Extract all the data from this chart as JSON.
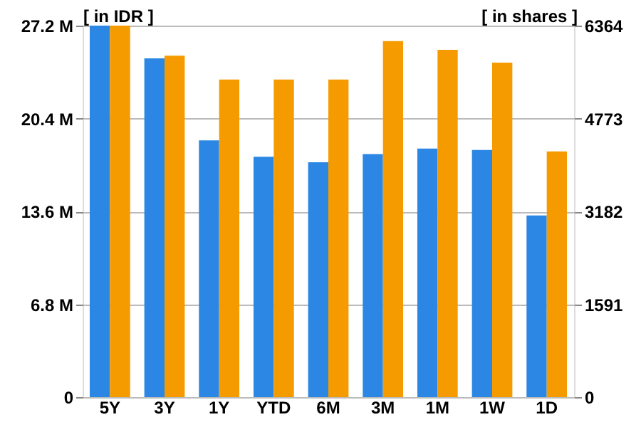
{
  "chart_data": {
    "type": "bar",
    "ylabel": "[ in IDR ]",
    "y2label": "[ in shares ]",
    "categories": [
      "5Y",
      "3Y",
      "1Y",
      "YTD",
      "6M",
      "3M",
      "1M",
      "1W",
      "1D"
    ],
    "series": [
      {
        "color": "#2b87e3",
        "values": [
          27.2,
          24.8,
          18.8,
          17.6,
          17.2,
          17.8,
          18.2,
          18.1,
          13.3
        ]
      },
      {
        "color": "#f59b00",
        "axis": "y2",
        "values": [
          6364,
          5850,
          5440,
          5440,
          5440,
          6100,
          5950,
          5730,
          4210
        ]
      }
    ],
    "ylim": [
      0,
      27.2
    ],
    "yticks": [
      0,
      {
        "value": 6.8,
        "label": "6.8 M"
      },
      {
        "value": 13.6,
        "label": "13.6 M"
      },
      {
        "value": 20.4,
        "label": "20.4 M"
      },
      {
        "value": 27.2,
        "label": "27.2 M"
      }
    ],
    "y2lim": [
      0,
      6364
    ],
    "y2ticks": [
      0,
      1591,
      3182,
      4773,
      6364
    ],
    "grid": "y"
  }
}
